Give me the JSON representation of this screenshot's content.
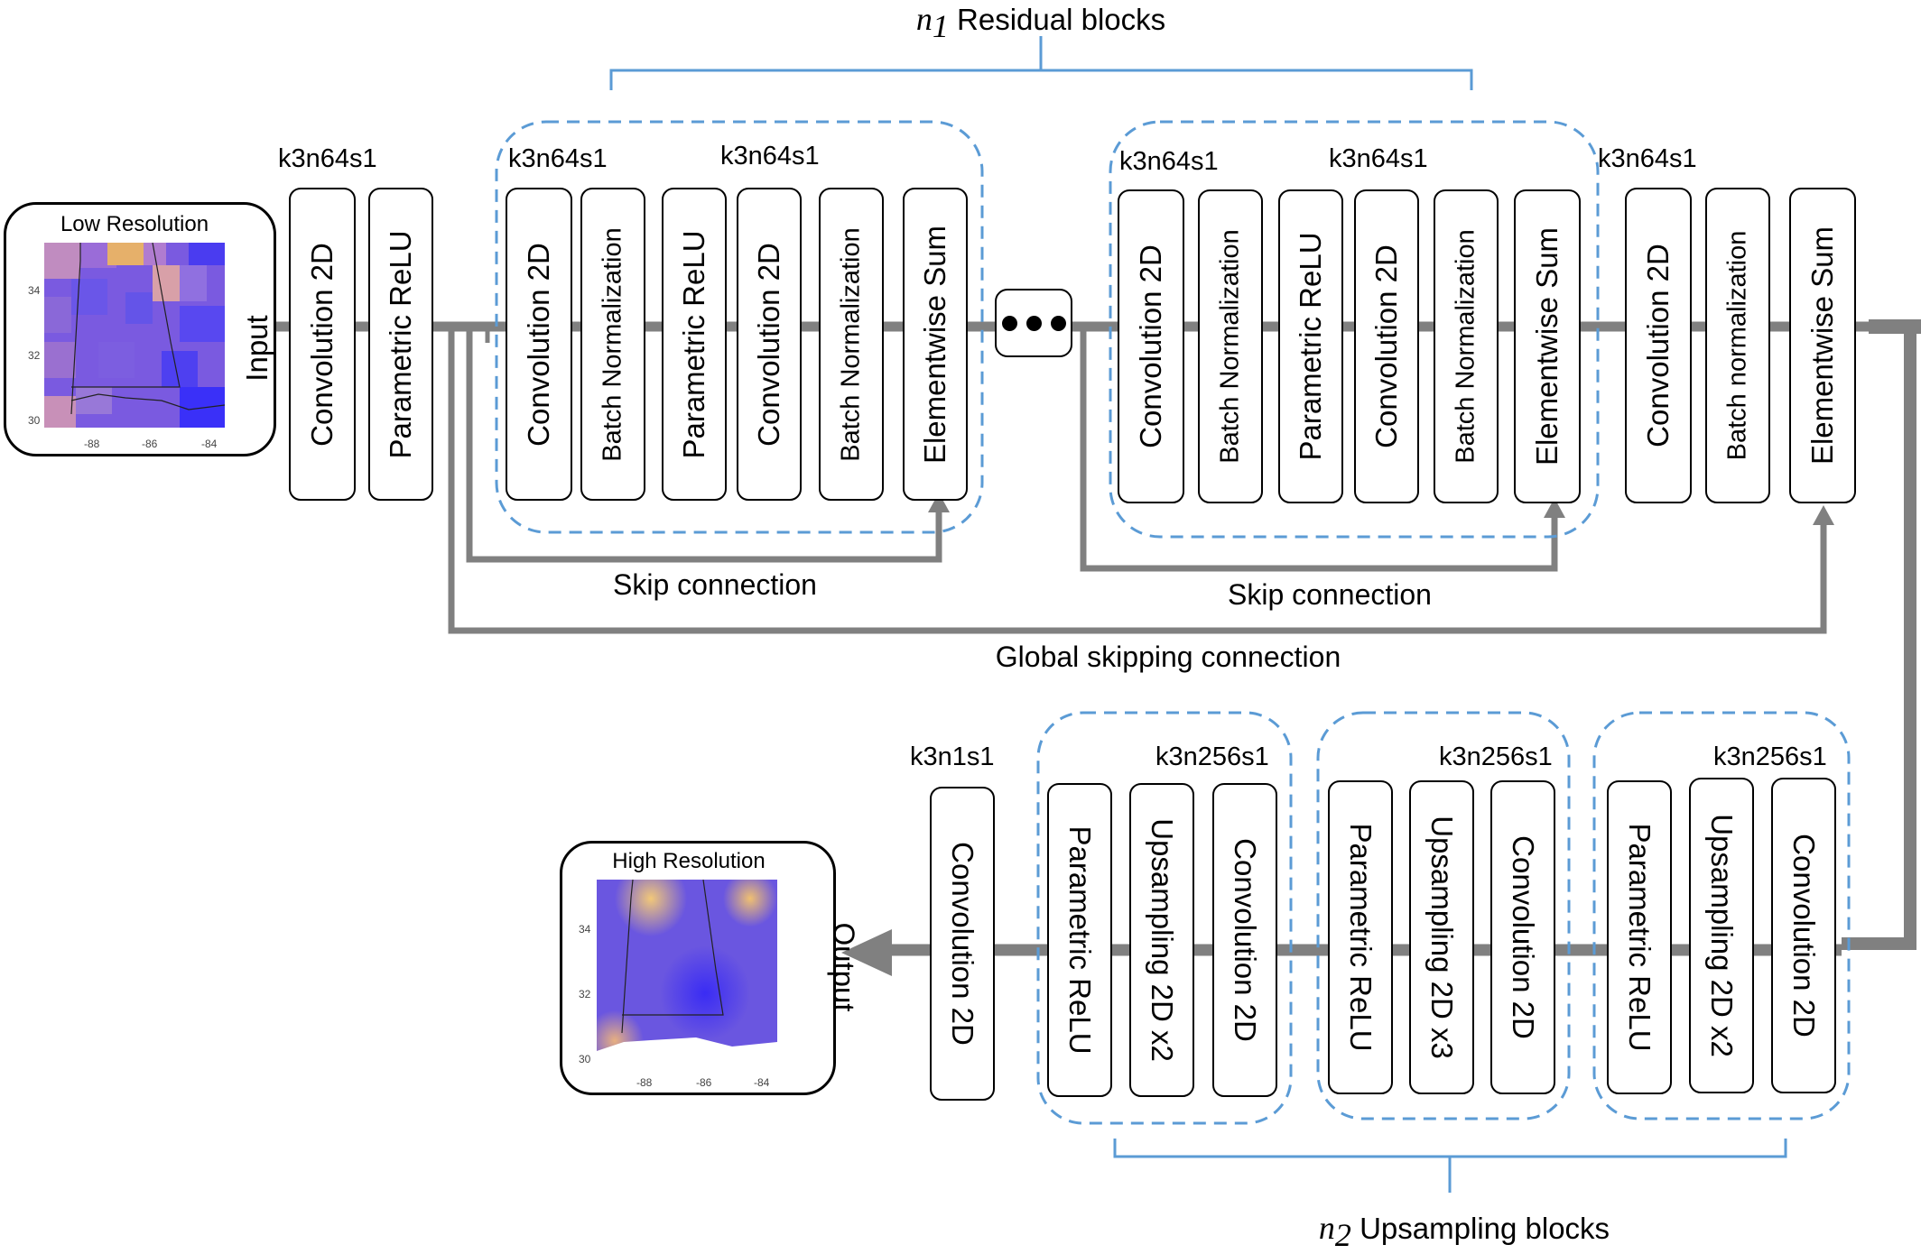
{
  "residual_title": {
    "var": "n",
    "sub": "1",
    "text": "Residual blocks"
  },
  "upsampling_title": {
    "var": "n",
    "sub": "2",
    "text": "Upsampling blocks"
  },
  "input": {
    "title": "Low Resolution",
    "label": "Input",
    "y_ticks": [
      "34",
      "32",
      "30"
    ],
    "x_ticks": [
      "-88",
      "-86",
      "-84"
    ]
  },
  "output": {
    "title": "High Resolution",
    "label": "Output",
    "y_ticks": [
      "34",
      "32",
      "30"
    ],
    "x_ticks": [
      "-88",
      "-86",
      "-84"
    ]
  },
  "top_row": {
    "k_labels": {
      "head": "k3n64s1",
      "res1_a": "k3n64s1",
      "res1_b": "k3n64s1",
      "res2_a": "k3n64s1",
      "res2_b": "k3n64s1",
      "tail": "k3n64s1"
    },
    "head_blocks": [
      "Convolution 2D",
      "Parametric ReLU"
    ],
    "res1_blocks": [
      "Convolution 2D",
      "Batch Normalization",
      "Parametric ReLU",
      "Convolution 2D",
      "Batch Normalization",
      "Elementwise Sum"
    ],
    "res2_blocks": [
      "Convolution 2D",
      "Batch Normalization",
      "Parametric ReLU",
      "Convolution 2D",
      "Batch Normalization",
      "Elementwise Sum"
    ],
    "tail_blocks": [
      "Convolution 2D",
      "Batch normalization",
      "Elementwise Sum"
    ]
  },
  "connections": {
    "skip1": "Skip connection",
    "skip2": "Skip connection",
    "global": "Global skipping connection"
  },
  "bottom_row": {
    "final": {
      "k": "k3n1s1",
      "label": "Convolution 2D"
    },
    "up1": {
      "k": "k3n256s1",
      "blocks": [
        "Parametric ReLU",
        "Upsampling 2D x2",
        "Convolution 2D"
      ]
    },
    "up2": {
      "k": "k3n256s1",
      "blocks": [
        "Parametric ReLU",
        "Upsampling 2D x3",
        "Convolution 2D"
      ]
    },
    "up3": {
      "k": "k3n256s1",
      "blocks": [
        "Parametric ReLU",
        "Upsampling 2D x2",
        "Convolution 2D"
      ]
    }
  },
  "colors": {
    "flow": "#808080",
    "group_border": "#5b9bd5",
    "bracket": "#5b9bd5",
    "block_border": "#000000"
  }
}
